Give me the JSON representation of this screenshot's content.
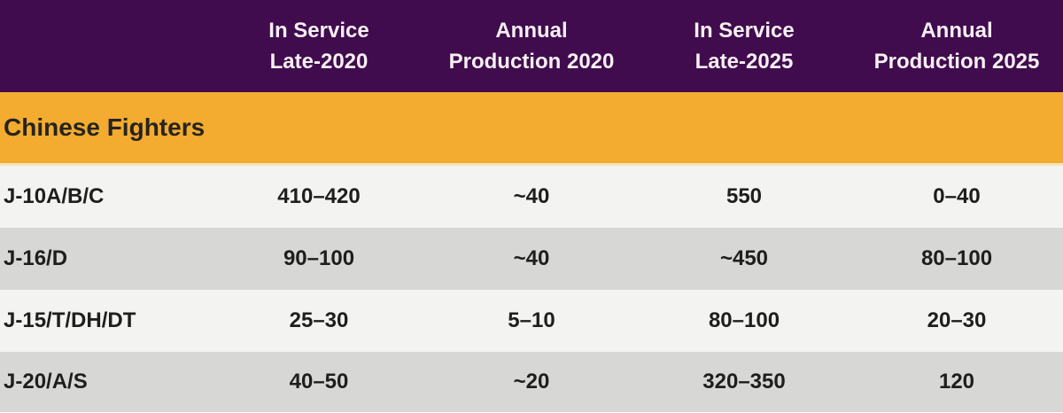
{
  "header": {
    "columns": [
      "In Service\nLate-2020",
      "Annual\nProduction 2020",
      "In Service\nLate-2025",
      "Annual\nProduction 2025"
    ]
  },
  "section": {
    "title": "Chinese Fighters"
  },
  "rows": [
    {
      "name": "J-10A/B/C",
      "values": [
        "410–420",
        "~40",
        "550",
        "0–40"
      ]
    },
    {
      "name": "J-16/D",
      "values": [
        "90–100",
        "~40",
        "~450",
        "80–100"
      ]
    },
    {
      "name": "J-15/T/DH/DT",
      "values": [
        "25–30",
        "5–10",
        "80–100",
        "20–30"
      ]
    },
    {
      "name": "J-20/A/S",
      "values": [
        "40–50",
        "~20",
        "320–350",
        "120"
      ]
    }
  ],
  "colors": {
    "header_bg": "#400C4E",
    "header_text": "#F7F0F3",
    "section_bg": "#F3AC2F",
    "section_divider": "#F6E2B9",
    "row_light": "#F3F3F1",
    "row_dark": "#D7D7D5",
    "body_text": "#1E1E1C"
  },
  "chart_data": {
    "type": "table",
    "title": "Chinese Fighters",
    "columns": [
      "",
      "In Service Late-2020",
      "Annual Production 2020",
      "In Service Late-2025",
      "Annual Production 2025"
    ],
    "rows": [
      [
        "J-10A/B/C",
        "410–420",
        "~40",
        "550",
        "0–40"
      ],
      [
        "J-16/D",
        "90–100",
        "~40",
        "~450",
        "80–100"
      ],
      [
        "J-15/T/DH/DT",
        "25–30",
        "5–10",
        "80–100",
        "20–30"
      ],
      [
        "J-20/A/S",
        "40–50",
        "~20",
        "320–350",
        "120"
      ]
    ]
  }
}
